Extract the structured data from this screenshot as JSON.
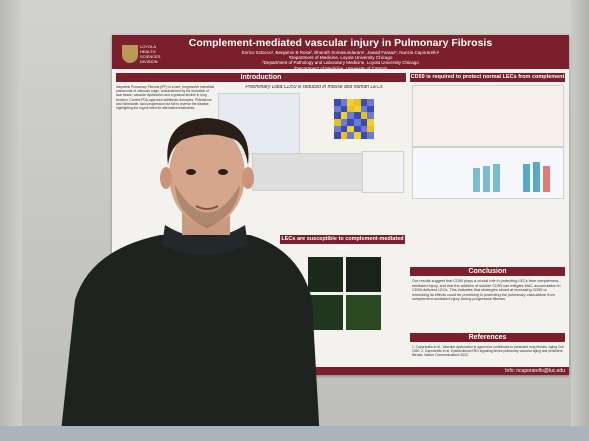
{
  "poster": {
    "title": "Complement-mediated vascular injury in Pulmonary Fibrosis",
    "authors": "Enrico Sclocco¹, Benjamin B Rosa², Bharath Somasundaram¹, Jawad Faraaz¹, Nunzia Caporarello¹",
    "affil1": "¹Department of Medicine, Loyola University Chicago",
    "affil2": "²Department of Pathology and Laboratory Medicine, Loyola University Chicago",
    "affil3": "³Department of Medicine, University of Catania",
    "logo_line1": "LOYOLA",
    "logo_line2": "HEALTH SCIENCES",
    "logo_line3": "DIVISION",
    "intro_heading": "Introduction",
    "preliminary": "Preliminary Data:CD59 is reduced in mouse and human LECs",
    "cd59_heading": "CD59 is required to protect normal LECs from complement injury",
    "lecs_heading": "LECs are susceptible to complement-mediated injury",
    "conclusion_heading": "Conclusion",
    "references_heading": "References",
    "intro_text": "Idiopathic Pulmonary Fibrosis (IPF) is a rare, progressive interstitial pneumonia of unknown origin, characterized by the formation of scar tissue, vascular dysfunction and a gradual decline in lung function. Current FDA-approved antifibrotic therapies, Pirfenidone and Nintedanib, slow progression but fail to reverse the disease, highlighting the urgent need for alternative treatments.",
    "conclusion_text": "Our results suggest that CD59 plays a crucial role in protecting LECs from complement-mediated injury, and that the addition of soluble CD59 can mitigate MAC accumulation in CD59-deficient LECs. This indicates that strategies aimed at increasing CD59 or mimicking its effects could be promising in protecting the pulmonary vasculature from complement-mediated injury during progressive fibrosis.",
    "references_text": "1. Caporarello et al., Vascular dysfunction in aged mice contributes to persistent lung fibrosis. Aging Cell 2020. 2. Caporarello et al. Dysfunctional ERG signaling drives pulmonary vascular aging and persistent fibrosis. Nature Communications 2022.",
    "info": "Info: ncaporarello@luc.edu"
  }
}
